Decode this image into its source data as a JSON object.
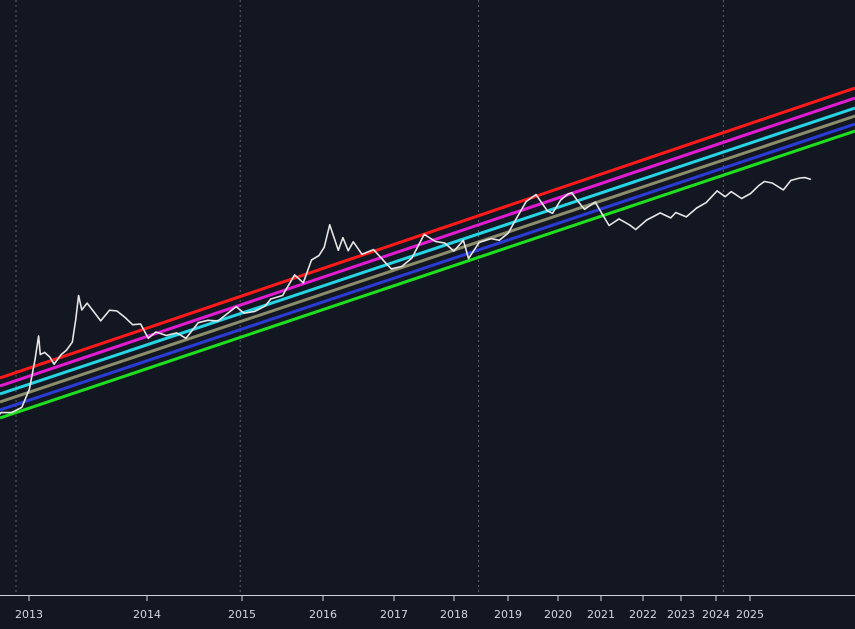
{
  "chart_data": {
    "type": "line",
    "title": "",
    "xlabel": "",
    "ylabel": "",
    "x_scale": "time",
    "y_scale": "log",
    "grid": "vertical dotted lines at halving dates",
    "legend": "none",
    "x_tick_labels": [
      "2013",
      "2014",
      "2015",
      "2016",
      "2017",
      "2018",
      "2019",
      "2020",
      "2021",
      "2022",
      "2023",
      "2024",
      "2025"
    ],
    "halving_markers": [
      "2012-11-28",
      "2016-07-09",
      "2020-05-11",
      "2024-04-20"
    ],
    "bands": [
      {
        "color": "#ff1a1a",
        "start": [
          "2012-07-01",
          0
        ],
        "end": [
          "2026-12-31",
          1
        ]
      },
      {
        "color": "#e21bd2",
        "start": [
          "2012-07-01",
          0
        ],
        "end": [
          "2026-12-31",
          1
        ]
      },
      {
        "color": "#26d4e3",
        "start": [
          "2012-07-01",
          0
        ],
        "end": [
          "2026-12-31",
          1
        ]
      },
      {
        "color": "#8c8d6a",
        "start": [
          "2012-07-01",
          0
        ],
        "end": [
          "2026-12-31",
          1
        ]
      },
      {
        "color": "#2a3bd6",
        "start": [
          "2012-07-01",
          0
        ],
        "end": [
          "2026-12-31",
          1
        ]
      },
      {
        "color": "#1fe01f",
        "start": [
          "2012-07-01",
          0
        ],
        "end": [
          "2026-12-31",
          1
        ]
      }
    ],
    "series": [
      {
        "color": "#e6e6e6",
        "points": [
          [
            "2012-07-01",
            6.5
          ],
          [
            "2012-09-01",
            11
          ],
          [
            "2012-11-01",
            11
          ],
          [
            "2013-01-01",
            13.5
          ],
          [
            "2013-02-15",
            28
          ],
          [
            "2013-03-20",
            90
          ],
          [
            "2013-04-10",
            230
          ],
          [
            "2013-04-20",
            110
          ],
          [
            "2013-05-15",
            120
          ],
          [
            "2013-06-15",
            100
          ],
          [
            "2013-07-10",
            75
          ],
          [
            "2013-08-20",
            110
          ],
          [
            "2013-09-20",
            130
          ],
          [
            "2013-10-25",
            180
          ],
          [
            "2013-11-15",
            450
          ],
          [
            "2013-12-01",
            1150
          ],
          [
            "2013-12-20",
            650
          ],
          [
            "2014-01-20",
            850
          ],
          [
            "2014-03-01",
            600
          ],
          [
            "2014-04-10",
            420
          ],
          [
            "2014-06-01",
            640
          ],
          [
            "2014-07-15",
            620
          ],
          [
            "2014-09-01",
            480
          ],
          [
            "2014-10-15",
            360
          ],
          [
            "2014-12-01",
            370
          ],
          [
            "2015-01-15",
            210
          ],
          [
            "2015-03-01",
            270
          ],
          [
            "2015-05-01",
            235
          ],
          [
            "2015-07-01",
            260
          ],
          [
            "2015-08-25",
            210
          ],
          [
            "2015-11-05",
            390
          ],
          [
            "2016-01-01",
            430
          ],
          [
            "2016-03-01",
            420
          ],
          [
            "2016-06-15",
            740
          ],
          [
            "2016-08-01",
            570
          ],
          [
            "2016-10-01",
            610
          ],
          [
            "2016-12-01",
            750
          ],
          [
            "2017-01-05",
            1000
          ],
          [
            "2017-03-15",
            1150
          ],
          [
            "2017-05-25",
            2600
          ],
          [
            "2017-07-15",
            1900
          ],
          [
            "2017-09-01",
            4700
          ],
          [
            "2017-10-15",
            5600
          ],
          [
            "2017-11-15",
            7800
          ],
          [
            "2017-12-17",
            19000
          ],
          [
            "2018-02-06",
            6900
          ],
          [
            "2018-03-05",
            11400
          ],
          [
            "2018-04-05",
            6800
          ],
          [
            "2018-05-05",
            9700
          ],
          [
            "2018-06-25",
            5900
          ],
          [
            "2018-09-01",
            7100
          ],
          [
            "2018-11-25",
            3800
          ],
          [
            "2018-12-15",
            3300
          ],
          [
            "2019-02-15",
            3650
          ],
          [
            "2019-04-15",
            5100
          ],
          [
            "2019-06-26",
            13000
          ],
          [
            "2019-09-01",
            9800
          ],
          [
            "2019-10-26",
            9200
          ],
          [
            "2019-12-18",
            6700
          ],
          [
            "2020-02-12",
            10300
          ],
          [
            "2020-03-13",
            5000
          ],
          [
            "2020-05-15",
            9500
          ],
          [
            "2020-07-25",
            11000
          ],
          [
            "2020-09-10",
            10300
          ],
          [
            "2020-11-01",
            13700
          ],
          [
            "2020-12-25",
            26000
          ],
          [
            "2021-02-15",
            48000
          ],
          [
            "2021-04-14",
            63000
          ],
          [
            "2021-06-20",
            33000
          ],
          [
            "2021-07-20",
            30000
          ],
          [
            "2021-09-06",
            51000
          ],
          [
            "2021-10-20",
            65000
          ],
          [
            "2021-11-10",
            68000
          ],
          [
            "2021-12-20",
            47000
          ],
          [
            "2022-01-24",
            35000
          ],
          [
            "2022-03-28",
            47000
          ],
          [
            "2022-05-12",
            28000
          ],
          [
            "2022-06-18",
            18500
          ],
          [
            "2022-08-15",
            24000
          ],
          [
            "2022-10-15",
            19000
          ],
          [
            "2022-11-21",
            15800
          ],
          [
            "2023-01-25",
            23000
          ],
          [
            "2023-03-17",
            27500
          ],
          [
            "2023-04-14",
            30500
          ],
          [
            "2023-06-15",
            25000
          ],
          [
            "2023-07-15",
            31000
          ],
          [
            "2023-09-15",
            26000
          ],
          [
            "2023-11-15",
            37000
          ],
          [
            "2024-01-10",
            46000
          ],
          [
            "2024-03-14",
            73000
          ],
          [
            "2024-05-01",
            58000
          ],
          [
            "2024-06-05",
            71000
          ],
          [
            "2024-08-05",
            54000
          ],
          [
            "2024-09-27",
            66000
          ],
          [
            "2024-11-12",
            89000
          ],
          [
            "2024-12-17",
            106000
          ],
          [
            "2025-02-01",
            100000
          ],
          [
            "2025-04-08",
            76000
          ],
          [
            "2025-05-22",
            111000
          ],
          [
            "2025-07-14",
            122000
          ],
          [
            "2025-08-14",
            124000
          ],
          [
            "2025-09-15",
            116000
          ]
        ]
      }
    ]
  }
}
